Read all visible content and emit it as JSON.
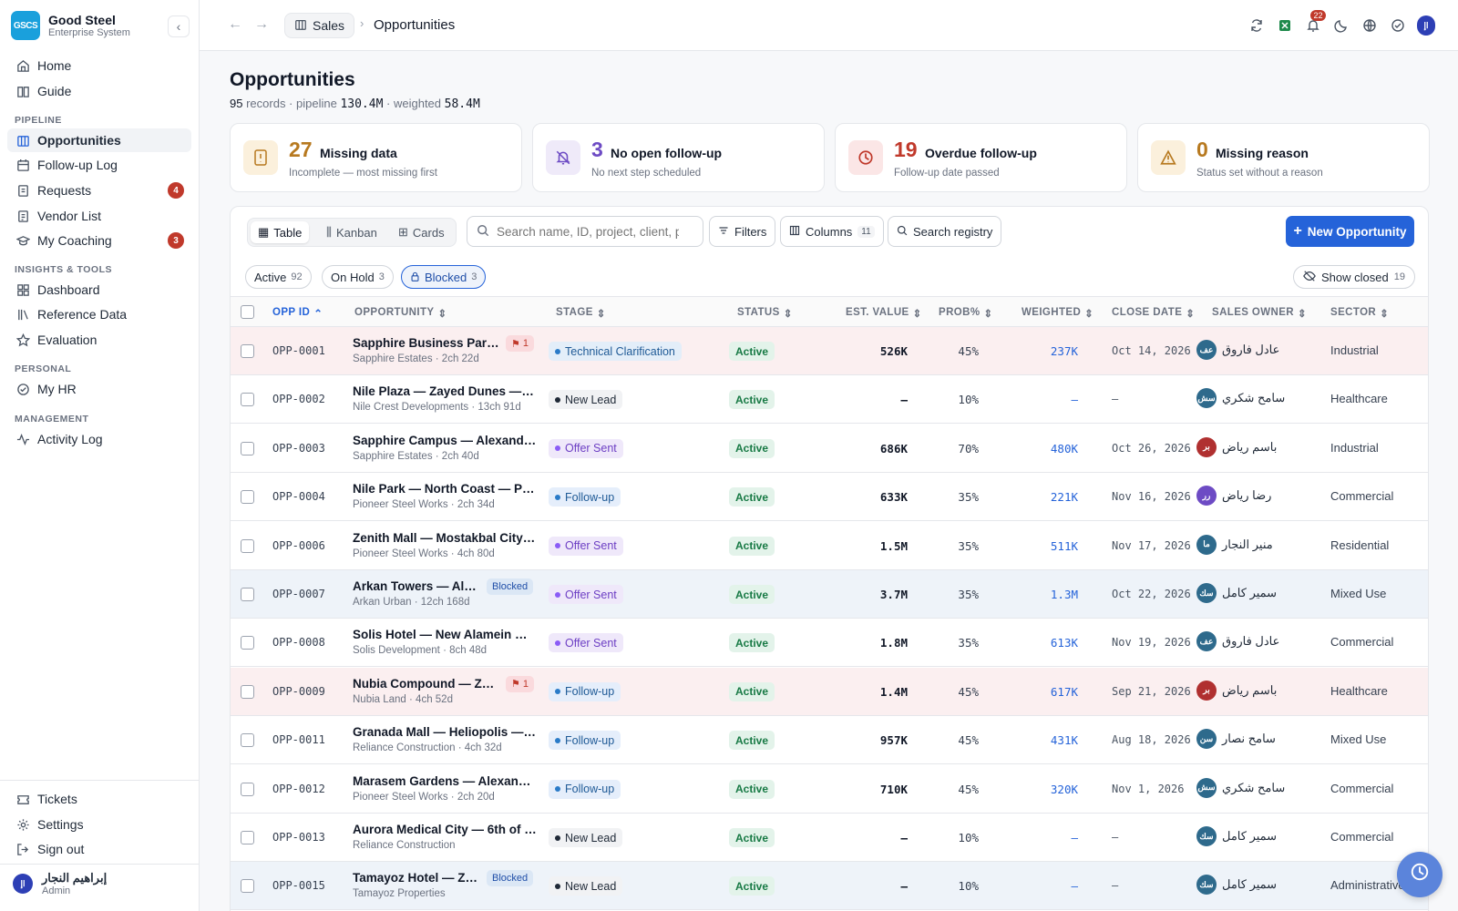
{
  "brand": {
    "logo": "GSCS",
    "name": "Good Steel",
    "sub": "Enterprise System"
  },
  "nav": {
    "home": "Home",
    "guide": "Guide",
    "section_pipeline": "PIPELINE",
    "opportunities": "Opportunities",
    "followup": "Follow-up Log",
    "requests": "Requests",
    "requests_badge": "4",
    "vendor": "Vendor List",
    "coaching": "My Coaching",
    "coaching_badge": "3",
    "section_insights": "INSIGHTS & TOOLS",
    "dashboard": "Dashboard",
    "reference": "Reference Data",
    "evaluation": "Evaluation",
    "section_personal": "PERSONAL",
    "myhr": "My HR",
    "section_management": "MANAGEMENT",
    "activity": "Activity Log",
    "tickets": "Tickets",
    "settings": "Settings",
    "signout": "Sign out"
  },
  "user": {
    "initials": "اإ",
    "name": "إبراهيم النجار",
    "role": "Admin"
  },
  "topbar": {
    "crumb_root": "Sales",
    "crumb_current": "Opportunities",
    "notifications": "22"
  },
  "page": {
    "title": "Opportunities",
    "records": "95",
    "records_label": "records · pipeline",
    "pipeline": "130.4M",
    "weighted_label": "· weighted",
    "weighted": "58.4M"
  },
  "stats": [
    {
      "num": "27",
      "label": "Missing data",
      "desc": "Incomplete — most missing first",
      "color": "#b7791f"
    },
    {
      "num": "3",
      "label": "No open follow-up",
      "desc": "No next step scheduled",
      "color": "#6d4bc4"
    },
    {
      "num": "19",
      "label": "Overdue follow-up",
      "desc": "Follow-up date passed",
      "color": "#c0392b"
    },
    {
      "num": "0",
      "label": "Missing reason",
      "desc": "Status set without a reason",
      "color": "#b7791f"
    }
  ],
  "toolbar": {
    "tab_table": "Table",
    "tab_kanban": "Kanban",
    "tab_cards": "Cards",
    "search_placeholder": "Search name, ID, project, client, p",
    "filters": "Filters",
    "columns": "Columns",
    "columns_count": "11",
    "search_registry": "Search registry",
    "new_opportunity": "New Opportunity"
  },
  "filters": {
    "active": "Active",
    "active_count": "92",
    "onhold": "On Hold",
    "onhold_count": "3",
    "blocked": "Blocked",
    "blocked_count": "3",
    "show_closed": "Show closed",
    "closed_count": "19"
  },
  "columns": [
    "OPP ID",
    "OPPORTUNITY",
    "STAGE",
    "STATUS",
    "EST. VALUE",
    "PROB%",
    "WEIGHTED",
    "CLOSE DATE",
    "SALES OWNER",
    "SECTOR"
  ],
  "rows": [
    {
      "id": "OPP-0001",
      "name": "Sapphire Business Park ...",
      "sub": "Sapphire Estates · 2ch 22d",
      "tag": "1",
      "tag_type": "flag",
      "stage": "Technical Clarification",
      "stage_type": "tech",
      "status": "Active",
      "value": "526K",
      "prob": "45%",
      "weighted": "237K",
      "close": "Oct 14, 2026",
      "owner": "عادل فاروق",
      "owner_initials": "عف",
      "owner_color": "#2e6a8c",
      "sector": "Industrial",
      "tint": "red"
    },
    {
      "id": "OPP-0002",
      "name": "Nile Plaza — Zayed Dunes — Nile...",
      "sub": "Nile Crest Developments · 13ch 91d",
      "tag": "",
      "tag_type": "",
      "stage": "New Lead",
      "stage_type": "new",
      "status": "Active",
      "value": "—",
      "prob": "10%",
      "weighted": "—",
      "close": "—",
      "owner": "سامح شكري",
      "owner_initials": "سش",
      "owner_color": "#2e6a8c",
      "sector": "Healthcare",
      "tint": ""
    },
    {
      "id": "OPP-0003",
      "name": "Sapphire Campus — Alexandria ...",
      "sub": "Sapphire Estates · 2ch 40d",
      "tag": "",
      "tag_type": "",
      "stage": "Offer Sent",
      "stage_type": "offer",
      "status": "Active",
      "value": "686K",
      "prob": "70%",
      "weighted": "480K",
      "close": "Oct 26, 2026",
      "owner": "باسم رياض",
      "owner_initials": "بر",
      "owner_color": "#b03030",
      "sector": "Industrial",
      "tint": ""
    },
    {
      "id": "OPP-0004",
      "name": "Nile Park — North Coast — Pion...",
      "sub": "Pioneer Steel Works · 2ch 34d",
      "tag": "",
      "tag_type": "",
      "stage": "Follow-up",
      "stage_type": "follow",
      "status": "Active",
      "value": "633K",
      "prob": "35%",
      "weighted": "221K",
      "close": "Nov 16, 2026",
      "owner": "رضا رياض",
      "owner_initials": "رر",
      "owner_color": "#6d4bc4",
      "sector": "Commercial",
      "tint": ""
    },
    {
      "id": "OPP-0006",
      "name": "Zenith Mall — Mostakbal City — ...",
      "sub": "Pioneer Steel Works · 4ch 80d",
      "tag": "",
      "tag_type": "",
      "stage": "Offer Sent",
      "stage_type": "offer",
      "status": "Active",
      "value": "1.5M",
      "prob": "35%",
      "weighted": "511K",
      "close": "Nov 17, 2026",
      "owner": "منير النجار",
      "owner_initials": "ما",
      "owner_color": "#2e6a8c",
      "sector": "Residential",
      "tint": ""
    },
    {
      "id": "OPP-0007",
      "name": "Arkan Towers — Alex...",
      "sub": "Arkan Urban · 12ch 168d",
      "tag": "Blocked",
      "tag_type": "blocked",
      "stage": "Offer Sent",
      "stage_type": "offer",
      "status": "Active",
      "value": "3.7M",
      "prob": "35%",
      "weighted": "1.3M",
      "close": "Oct 22, 2026",
      "owner": "سمير كامل",
      "owner_initials": "سك",
      "owner_color": "#2e6a8c",
      "sector": "Mixed Use",
      "tint": "blue"
    },
    {
      "id": "OPP-0008",
      "name": "Solis Hotel — New Alamein — Ph...",
      "sub": "Solis Development · 8ch 48d",
      "tag": "",
      "tag_type": "",
      "stage": "Offer Sent",
      "stage_type": "offer",
      "status": "Active",
      "value": "1.8M",
      "prob": "35%",
      "weighted": "613K",
      "close": "Nov 19, 2026",
      "owner": "عادل فاروق",
      "owner_initials": "عف",
      "owner_color": "#2e6a8c",
      "sector": "Commercial",
      "tint": ""
    },
    {
      "id": "OPP-0009",
      "name": "Nubia Compound — Zay...",
      "sub": "Nubia Land · 4ch 52d",
      "tag": "1",
      "tag_type": "flag",
      "stage": "Follow-up",
      "stage_type": "follow",
      "status": "Active",
      "value": "1.4M",
      "prob": "45%",
      "weighted": "617K",
      "close": "Sep 21, 2026",
      "owner": "باسم رياض",
      "owner_initials": "بر",
      "owner_color": "#b03030",
      "sector": "Healthcare",
      "tint": "red"
    },
    {
      "id": "OPP-0011",
      "name": "Granada Mall — Heliopolis — Rel...",
      "sub": "Reliance Construction · 4ch 32d",
      "tag": "",
      "tag_type": "",
      "stage": "Follow-up",
      "stage_type": "follow",
      "status": "Active",
      "value": "957K",
      "prob": "45%",
      "weighted": "431K",
      "close": "Aug 18, 2026",
      "owner": "سامح نصار",
      "owner_initials": "سن",
      "owner_color": "#2e6a8c",
      "sector": "Mixed Use",
      "tint": ""
    },
    {
      "id": "OPP-0012",
      "name": "Marasem Gardens — Alexandria...",
      "sub": "Pioneer Steel Works · 2ch 20d",
      "tag": "",
      "tag_type": "",
      "stage": "Follow-up",
      "stage_type": "follow",
      "status": "Active",
      "value": "710K",
      "prob": "45%",
      "weighted": "320K",
      "close": "Nov 1, 2026",
      "owner": "سامح شكري",
      "owner_initials": "سش",
      "owner_color": "#2e6a8c",
      "sector": "Commercial",
      "tint": ""
    },
    {
      "id": "OPP-0013",
      "name": "Aurora Medical City — 6th of Oc...",
      "sub": "Reliance Construction",
      "tag": "",
      "tag_type": "",
      "stage": "New Lead",
      "stage_type": "new",
      "status": "Active",
      "value": "—",
      "prob": "10%",
      "weighted": "—",
      "close": "—",
      "owner": "سمير كامل",
      "owner_initials": "سك",
      "owner_color": "#2e6a8c",
      "sector": "Commercial",
      "tint": ""
    },
    {
      "id": "OPP-0015",
      "name": "Tamayoz Hotel — Zay...",
      "sub": "Tamayoz Properties",
      "tag": "Blocked",
      "tag_type": "blocked",
      "stage": "New Lead",
      "stage_type": "new",
      "status": "Active",
      "value": "—",
      "prob": "10%",
      "weighted": "—",
      "close": "—",
      "owner": "سمير كامل",
      "owner_initials": "سك",
      "owner_color": "#2e6a8c",
      "sector": "Administrative",
      "tint": "blue"
    }
  ]
}
